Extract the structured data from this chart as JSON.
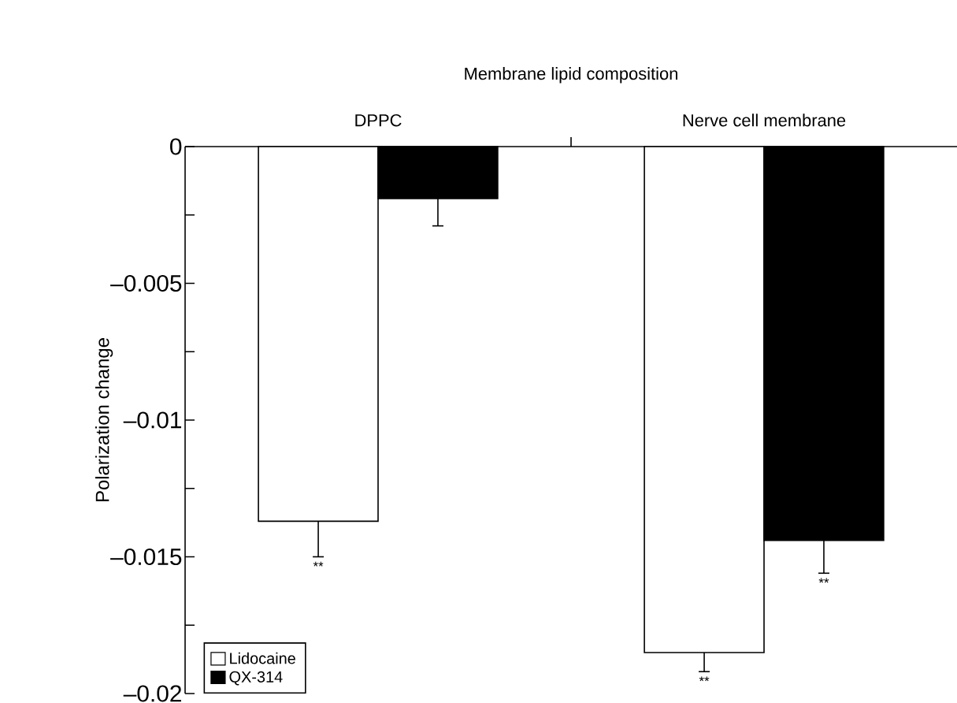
{
  "chart_data": {
    "type": "bar",
    "xlabel": "Membrane lipid composition",
    "ylabel": "Polarization change",
    "categories": [
      "DPPC",
      "Nerve cell membrane"
    ],
    "series": [
      {
        "name": "Lidocaine",
        "color": "#ffffff",
        "values": [
          -0.0137,
          -0.0185
        ],
        "errors": [
          [
            -0.015,
            -0.0137
          ],
          [
            -0.0192,
            -0.0185
          ]
        ],
        "value_labels": [
          "**",
          "**"
        ]
      },
      {
        "name": "QX-314",
        "color": "#000000",
        "values": [
          -0.0019,
          -0.0144
        ],
        "errors": [
          [
            -0.0029,
            -0.0019
          ],
          [
            -0.0156,
            -0.0144
          ]
        ],
        "value_labels": [
          null,
          "**"
        ]
      }
    ],
    "ylim": [
      -0.02,
      0
    ],
    "yticks": [
      {
        "value": 0,
        "label": "0"
      },
      {
        "value": -0.005,
        "label": "–0.005"
      },
      {
        "value": -0.01,
        "label": "–0.01"
      },
      {
        "value": -0.015,
        "label": "–0.015"
      },
      {
        "value": -0.02,
        "label": "–0.02"
      }
    ],
    "legend": "bottom left"
  }
}
